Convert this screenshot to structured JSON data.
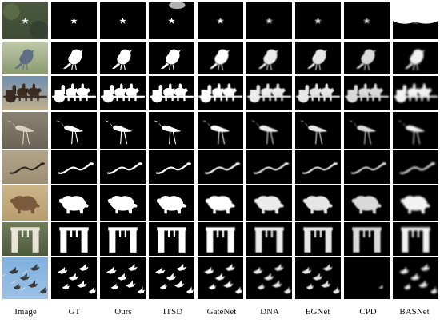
{
  "columns": [
    "Image",
    "GT",
    "Ours",
    "ITSD",
    "GateNet",
    "DNA",
    "EGNet",
    "CPD",
    "BASNet"
  ],
  "rows": [
    {
      "subject": "star",
      "image_palette": {
        "sky": "#4a5a3e",
        "ground": "#3f4a35",
        "accent": "#7a5e45"
      }
    },
    {
      "subject": "bird",
      "image_palette": {
        "sky": "#bfc9a8",
        "ground": "#8a9a70",
        "accent": "#5f6e86"
      }
    },
    {
      "subject": "oxcart",
      "image_palette": {
        "sky": "#6f8fb0",
        "ground": "#c2b08b",
        "accent": "#3b2a20"
      }
    },
    {
      "subject": "wader",
      "image_palette": {
        "sky": "#8a8272",
        "ground": "#6b6455",
        "accent": "#d8d2c2"
      }
    },
    {
      "subject": "snake",
      "image_palette": {
        "sky": "#b3a58a",
        "ground": "#9e8f74",
        "accent": "#2b2520"
      }
    },
    {
      "subject": "beast",
      "image_palette": {
        "sky": "#cdb589",
        "ground": "#b89d6e",
        "accent": "#7a5a3c"
      }
    },
    {
      "subject": "pergola",
      "image_palette": {
        "sky": "#6f7d5a",
        "ground": "#4e5a3c",
        "accent": "#e8e4d8"
      }
    },
    {
      "subject": "jets",
      "image_palette": {
        "sky": "#7fb0de",
        "ground": "#9cc2e6",
        "accent": "#3a3a3a"
      }
    }
  ]
}
